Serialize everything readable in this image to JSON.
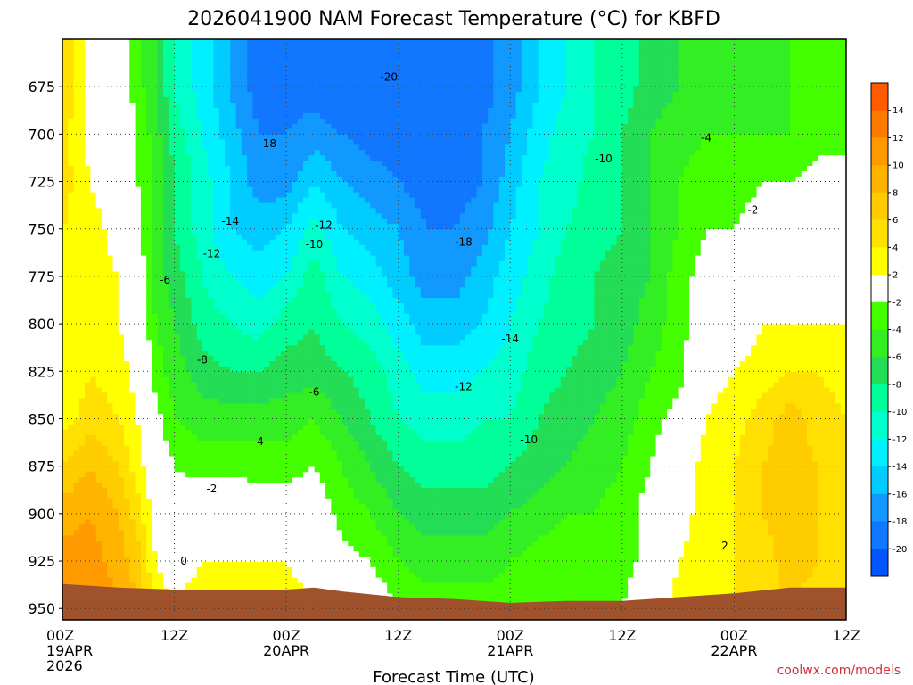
{
  "chart_data": {
    "type": "heatmap",
    "title": "2026041900 NAM Forecast Temperature (°C) for KBFD",
    "xlabel": "Forecast Time (UTC)",
    "ylabel": "",
    "credit": "coolwx.com/models",
    "x_ticks": [
      {
        "hours": 0,
        "lines": [
          "00Z",
          "19APR",
          "2026"
        ]
      },
      {
        "hours": 12,
        "lines": [
          "12Z"
        ]
      },
      {
        "hours": 24,
        "lines": [
          "00Z",
          "20APR"
        ]
      },
      {
        "hours": 36,
        "lines": [
          "12Z"
        ]
      },
      {
        "hours": 48,
        "lines": [
          "00Z",
          "21APR"
        ]
      },
      {
        "hours": 60,
        "lines": [
          "12Z"
        ]
      },
      {
        "hours": 72,
        "lines": [
          "00Z",
          "22APR"
        ]
      },
      {
        "hours": 84,
        "lines": [
          "12Z"
        ]
      }
    ],
    "x_range_hours": [
      0,
      84
    ],
    "y_ticks": [
      675,
      700,
      725,
      750,
      775,
      800,
      825,
      850,
      875,
      900,
      925,
      950
    ],
    "y_range_mb": [
      650,
      956
    ],
    "terrain_color": "#a0522d",
    "colorbar": {
      "levels": [
        14,
        12,
        10,
        8,
        6,
        4,
        2,
        -2,
        -4,
        -6,
        -8,
        -10,
        -12,
        -14,
        -16,
        -18,
        -20
      ],
      "colors": [
        "#ff5a00",
        "#ff7a00",
        "#ff9a00",
        "#ffb400",
        "#ffcc00",
        "#ffe000",
        "#ffff00",
        "#ffffff",
        "#44ff00",
        "#33ee22",
        "#22dd55",
        "#00ff99",
        "#00ffcc",
        "#00f0ff",
        "#00ccff",
        "#1199ff",
        "#1177ff",
        "#0055ff"
      ]
    },
    "profiles": [
      {
        "hours": 0,
        "temps": [
          6,
          5,
          5,
          4,
          3,
          2,
          2,
          3,
          6,
          9,
          11,
          12
        ]
      },
      {
        "hours": 3,
        "temps": [
          1,
          1,
          2,
          3,
          3,
          3,
          4,
          5,
          8,
          10,
          11,
          12
        ]
      },
      {
        "hours": 6,
        "temps": [
          0,
          0,
          0,
          1,
          2,
          2,
          3,
          4,
          6,
          8,
          9,
          10
        ]
      },
      {
        "hours": 8,
        "temps": [
          -3,
          -2,
          -2,
          -1,
          0,
          1,
          1,
          2,
          3,
          5,
          7,
          8
        ]
      },
      {
        "hours": 10,
        "temps": [
          -6,
          -5,
          -5,
          -5,
          -5,
          -4,
          -3,
          -1,
          0,
          1,
          2,
          3
        ]
      },
      {
        "hours": 12,
        "temps": [
          -10,
          -9,
          -8,
          -8,
          -7,
          -6,
          -5,
          -4,
          -2,
          -1,
          1,
          2
        ]
      },
      {
        "hours": 15,
        "temps": [
          -13,
          -12,
          -11,
          -11,
          -10,
          -9,
          -7,
          -5,
          -3,
          1,
          2,
          3
        ]
      },
      {
        "hours": 18,
        "temps": [
          -16,
          -15,
          -14,
          -14,
          -12,
          -10,
          -8,
          -5,
          -3,
          1,
          2,
          3
        ]
      },
      {
        "hours": 21,
        "temps": [
          -19,
          -18,
          -17,
          -15,
          -13,
          -11,
          -8,
          -5,
          -3,
          0,
          2,
          3
        ]
      },
      {
        "hours": 24,
        "temps": [
          -19,
          -18,
          -17,
          -14,
          -12,
          -9,
          -7,
          -5,
          -3,
          0,
          2,
          3
        ]
      },
      {
        "hours": 27,
        "temps": [
          -19,
          -17,
          -14,
          -11,
          -9,
          -8,
          -7,
          -4,
          -2,
          0,
          1,
          2
        ]
      },
      {
        "hours": 30,
        "temps": [
          -20,
          -18,
          -16,
          -14,
          -12,
          -10,
          -8,
          -6,
          -4,
          -3,
          -1,
          1
        ]
      },
      {
        "hours": 33,
        "temps": [
          -20,
          -19,
          -17,
          -15,
          -13,
          -11,
          -9,
          -8,
          -6,
          -4,
          -2,
          0
        ]
      },
      {
        "hours": 36,
        "temps": [
          -20,
          -19,
          -18,
          -16,
          -15,
          -13,
          -11,
          -10,
          -8,
          -6,
          -4,
          -2
        ]
      },
      {
        "hours": 39,
        "temps": [
          -20,
          -19,
          -19,
          -18,
          -17,
          -15,
          -13,
          -11,
          -9,
          -7,
          -5,
          -3
        ]
      },
      {
        "hours": 42,
        "temps": [
          -20,
          -19,
          -19,
          -18,
          -17,
          -15,
          -13,
          -11,
          -9,
          -7,
          -5,
          -3
        ]
      },
      {
        "hours": 45,
        "temps": [
          -19,
          -18,
          -18,
          -17,
          -15,
          -14,
          -12,
          -10,
          -9,
          -7,
          -5,
          -3
        ]
      },
      {
        "hours": 48,
        "temps": [
          -17,
          -16,
          -15,
          -14,
          -13,
          -12,
          -11,
          -10,
          -8,
          -6,
          -4,
          -3
        ]
      },
      {
        "hours": 51,
        "temps": [
          -14,
          -13,
          -12,
          -12,
          -11,
          -10,
          -9,
          -8,
          -7,
          -5,
          -3,
          -3
        ]
      },
      {
        "hours": 54,
        "temps": [
          -12,
          -11,
          -11,
          -10,
          -9,
          -9,
          -8,
          -7,
          -6,
          -4,
          -3,
          -3
        ]
      },
      {
        "hours": 57,
        "temps": [
          -10,
          -10,
          -9,
          -9,
          -8,
          -8,
          -7,
          -6,
          -5,
          -4,
          -3,
          -2
        ]
      },
      {
        "hours": 60,
        "temps": [
          -9,
          -8,
          -8,
          -8,
          -7,
          -7,
          -6,
          -5,
          -4,
          -3,
          -3,
          -2
        ]
      },
      {
        "hours": 63,
        "temps": [
          -7,
          -6,
          -6,
          -6,
          -6,
          -5,
          -4,
          -3,
          -2,
          -1,
          -1,
          0
        ]
      },
      {
        "hours": 66,
        "temps": [
          -6,
          -5,
          -4,
          -4,
          -3,
          -3,
          -3,
          -1,
          0,
          1,
          2,
          3
        ]
      },
      {
        "hours": 69,
        "temps": [
          -5,
          -4,
          -3,
          -2,
          -1,
          0,
          1,
          2,
          3,
          3,
          3,
          4
        ]
      },
      {
        "hours": 72,
        "temps": [
          -5,
          -4,
          -3,
          -2,
          -1,
          0,
          2,
          3,
          4,
          4,
          4,
          4
        ]
      },
      {
        "hours": 75,
        "temps": [
          -5,
          -4,
          -2,
          -1,
          0,
          2,
          3,
          5,
          6,
          6,
          5,
          5
        ]
      },
      {
        "hours": 78,
        "temps": [
          -4,
          -4,
          -2,
          -1,
          0,
          2,
          4,
          7,
          7,
          7,
          7,
          6
        ]
      },
      {
        "hours": 81,
        "temps": [
          -4,
          -3,
          -1,
          0,
          1,
          2,
          4,
          5,
          6,
          6,
          6,
          5
        ]
      },
      {
        "hours": 84,
        "temps": [
          -3,
          -3,
          -1,
          0,
          1,
          2,
          3,
          4,
          5,
          5,
          5,
          5
        ]
      }
    ],
    "profile_levels_mb": [
      675,
      700,
      725,
      750,
      775,
      800,
      825,
      850,
      875,
      900,
      925,
      950
    ],
    "contour_labels": [
      {
        "text": "-20",
        "hours": 35,
        "mb": 670
      },
      {
        "text": "-18",
        "hours": 22,
        "mb": 705
      },
      {
        "text": "-14",
        "hours": 18,
        "mb": 746
      },
      {
        "text": "-12",
        "hours": 16,
        "mb": 763
      },
      {
        "text": "-12",
        "hours": 28,
        "mb": 748
      },
      {
        "text": "-10",
        "hours": 27,
        "mb": 758
      },
      {
        "text": "-18",
        "hours": 43,
        "mb": 757
      },
      {
        "text": "-6",
        "hours": 11,
        "mb": 777
      },
      {
        "text": "-10",
        "hours": 58,
        "mb": 713
      },
      {
        "text": "-4",
        "hours": 69,
        "mb": 702
      },
      {
        "text": "-2",
        "hours": 74,
        "mb": 740
      },
      {
        "text": "-14",
        "hours": 48,
        "mb": 808
      },
      {
        "text": "-8",
        "hours": 15,
        "mb": 819
      },
      {
        "text": "-6",
        "hours": 27,
        "mb": 836
      },
      {
        "text": "-12",
        "hours": 43,
        "mb": 833
      },
      {
        "text": "-4",
        "hours": 21,
        "mb": 862
      },
      {
        "text": "-10",
        "hours": 50,
        "mb": 861
      },
      {
        "text": "-2",
        "hours": 16,
        "mb": 887
      },
      {
        "text": "0",
        "hours": 13,
        "mb": 925
      },
      {
        "text": "2",
        "hours": 71,
        "mb": 917
      }
    ],
    "terrain_mb": [
      {
        "hours": 0,
        "mb": 937
      },
      {
        "hours": 6,
        "mb": 939
      },
      {
        "hours": 12,
        "mb": 940
      },
      {
        "hours": 24,
        "mb": 940
      },
      {
        "hours": 27,
        "mb": 939
      },
      {
        "hours": 30,
        "mb": 941
      },
      {
        "hours": 36,
        "mb": 944
      },
      {
        "hours": 42,
        "mb": 945
      },
      {
        "hours": 48,
        "mb": 947
      },
      {
        "hours": 54,
        "mb": 946
      },
      {
        "hours": 60,
        "mb": 946
      },
      {
        "hours": 66,
        "mb": 944
      },
      {
        "hours": 72,
        "mb": 942
      },
      {
        "hours": 78,
        "mb": 939
      },
      {
        "hours": 84,
        "mb": 939
      }
    ]
  }
}
